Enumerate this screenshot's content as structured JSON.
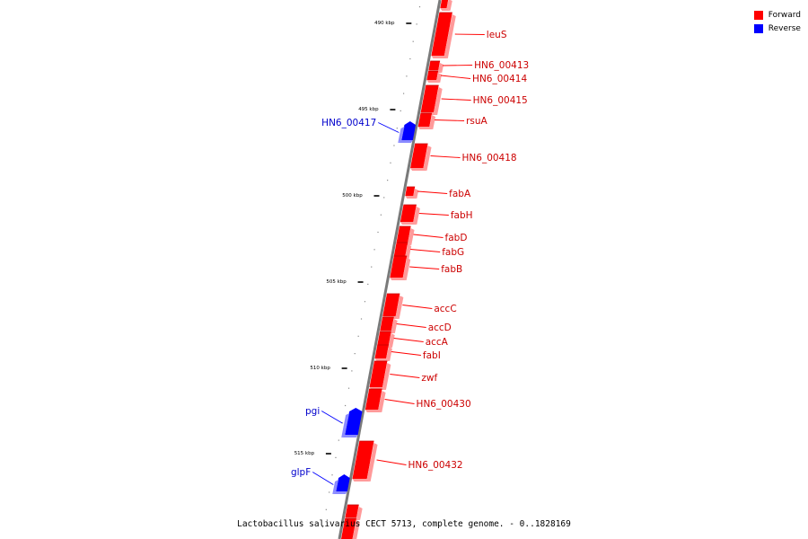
{
  "title": "Lactobacillus salivarius CECT 5713, complete genome. - 0..1828169",
  "legend": {
    "forward": {
      "label": "Forward",
      "color": "#ff0000"
    },
    "reverse": {
      "label": "Reverse",
      "color": "#0000ff"
    }
  },
  "tick_labels": [
    "490 kbp",
    "495 kbp",
    "500 kbp",
    "505 kbp",
    "510 kbp",
    "515 kbp"
  ],
  "genes": [
    {
      "name": "",
      "strand": "forward"
    },
    {
      "name": "leuS",
      "strand": "forward"
    },
    {
      "name": "HN6_00413",
      "strand": "forward"
    },
    {
      "name": "HN6_00414",
      "strand": "forward"
    },
    {
      "name": "HN6_00415",
      "strand": "forward"
    },
    {
      "name": "rsuA",
      "strand": "forward"
    },
    {
      "name": "HN6_00417",
      "strand": "reverse"
    },
    {
      "name": "HN6_00418",
      "strand": "forward"
    },
    {
      "name": "fabA",
      "strand": "forward"
    },
    {
      "name": "fabH",
      "strand": "forward"
    },
    {
      "name": "fabD",
      "strand": "forward"
    },
    {
      "name": "fabG",
      "strand": "forward"
    },
    {
      "name": "fabB",
      "strand": "forward"
    },
    {
      "name": "accC",
      "strand": "forward"
    },
    {
      "name": "accD",
      "strand": "forward"
    },
    {
      "name": "accA",
      "strand": "forward"
    },
    {
      "name": "fabI",
      "strand": "forward"
    },
    {
      "name": "zwf",
      "strand": "forward"
    },
    {
      "name": "HN6_00430",
      "strand": "forward"
    },
    {
      "name": "pgi",
      "strand": "reverse"
    },
    {
      "name": "HN6_00432",
      "strand": "forward"
    },
    {
      "name": "glpF",
      "strand": "reverse"
    },
    {
      "name": "",
      "strand": "forward"
    },
    {
      "name": "",
      "strand": "forward"
    }
  ]
}
